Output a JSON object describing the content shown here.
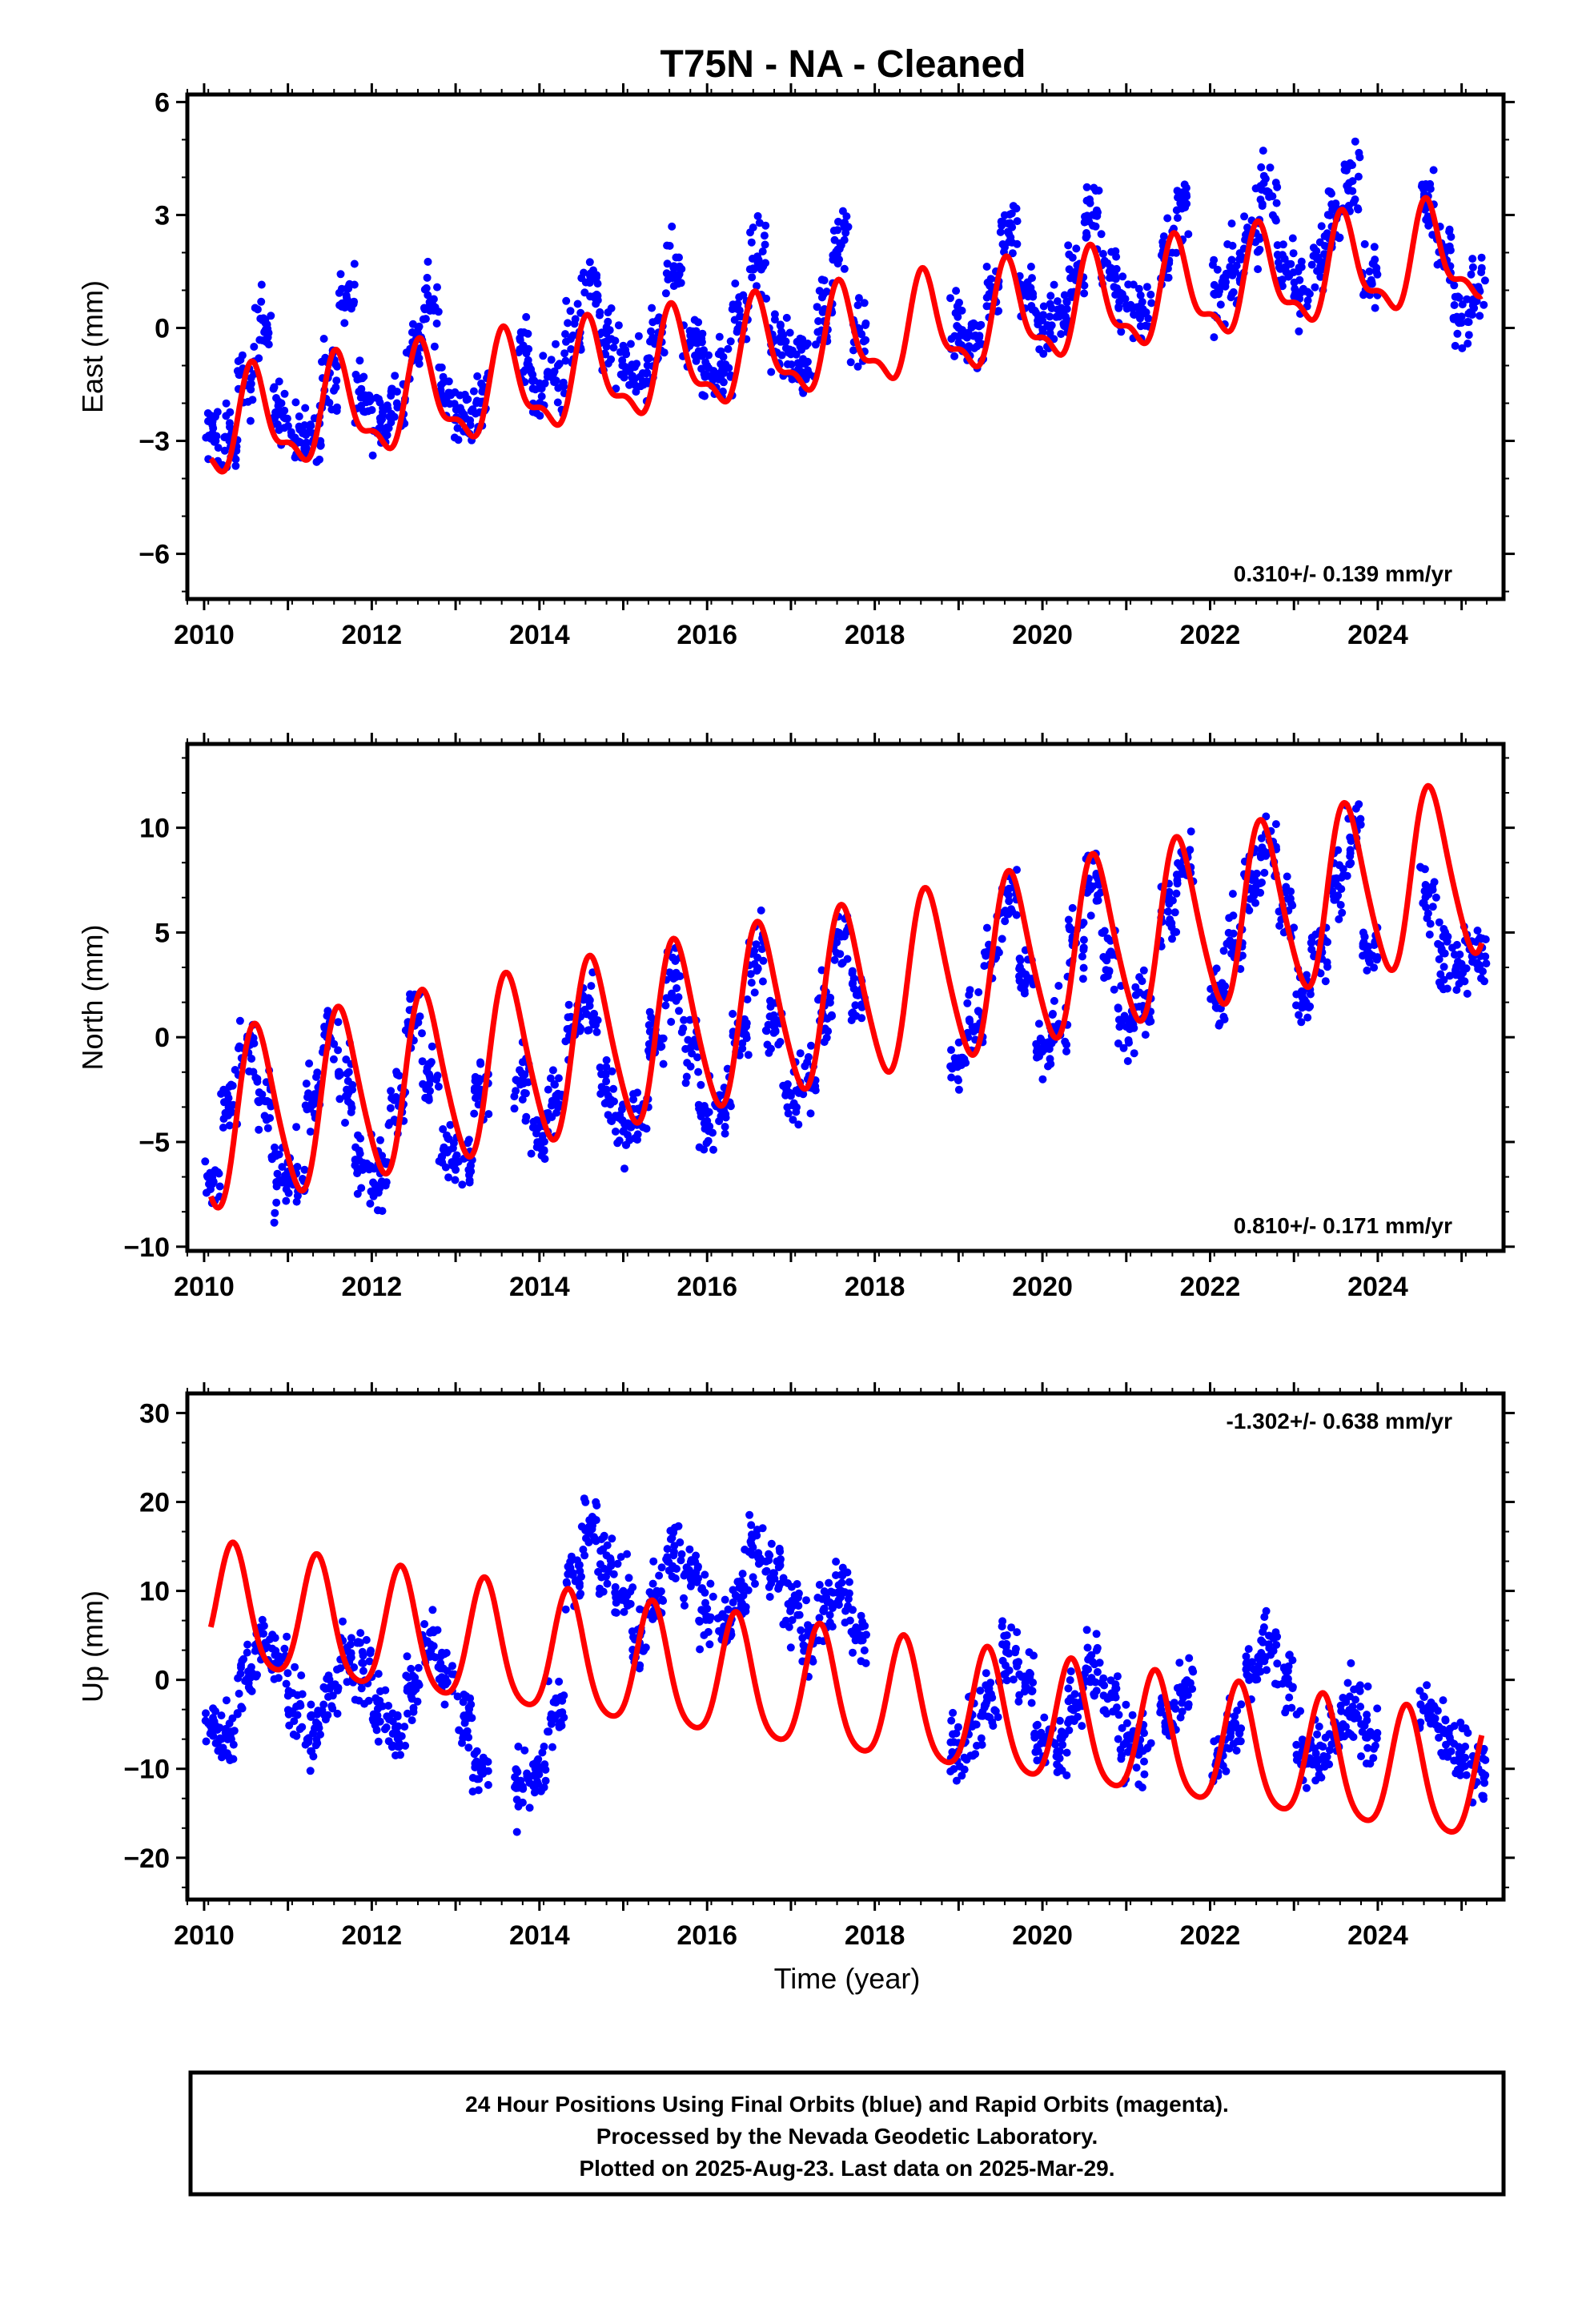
{
  "title": "T75N  - NA - Cleaned",
  "footer": {
    "line1": "24 Hour Positions Using Final Orbits (blue) and Rapid Orbits (magenta).",
    "line2": "Processed by the Nevada Geodetic Laboratory.",
    "line3": "Plotted on 2025-Aug-23. Last data on 2025-Mar-29."
  },
  "xlabel": "Time (year)",
  "colors": {
    "data": "#0000ff",
    "model": "#ff0000",
    "frame": "#000000"
  },
  "chart_data": [
    {
      "type": "scatter",
      "component": "east",
      "ylabel": "East (mm)",
      "xlim": [
        2009.8,
        2025.5
      ],
      "ylim": [
        -7.2,
        6.2
      ],
      "yticks": [
        -6,
        -3,
        0,
        3,
        6
      ],
      "xticks": [
        2010,
        2012,
        2014,
        2016,
        2018,
        2020,
        2022,
        2024
      ],
      "rate": "0.310+/- 0.139 mm/yr",
      "rate_position": "bottom-right",
      "model": {
        "offset": -2.75,
        "rate": 0.31,
        "annual_cos": -1.0,
        "annual_sin": -0.7,
        "semi_cos": 0.4,
        "semi_sin": 0.3,
        "start": 2010.08,
        "end": 2025.24
      },
      "series": [
        {
          "kind": "daily-positions",
          "x": [
            2010.1,
            2010.3,
            2010.5,
            2010.7,
            2010.9,
            2011.1,
            2011.3,
            2011.5,
            2011.7,
            2011.9,
            2012.1,
            2012.3,
            2012.5,
            2012.7,
            2012.9,
            2013.1,
            2013.3,
            2013.8,
            2014.0,
            2014.2,
            2014.4,
            2014.6,
            2014.8,
            2015.0,
            2015.2,
            2015.4,
            2015.6,
            2015.8,
            2016.0,
            2016.2,
            2016.4,
            2016.6,
            2016.8,
            2017.0,
            2017.2,
            2017.4,
            2017.6,
            2017.8,
            2019.0,
            2019.2,
            2019.4,
            2019.6,
            2019.8,
            2020.0,
            2020.2,
            2020.4,
            2020.6,
            2020.8,
            2021.0,
            2021.2,
            2021.5,
            2021.7,
            2022.1,
            2022.3,
            2022.5,
            2022.7,
            2022.9,
            2023.1,
            2023.3,
            2023.5,
            2023.7,
            2023.9,
            2024.6,
            2024.8,
            2025.0,
            2025.2
          ],
          "y": [
            -2.8,
            -3.0,
            -1.5,
            0.2,
            -2.2,
            -3.0,
            -2.8,
            -1.2,
            0.8,
            -1.8,
            -2.4,
            -2.0,
            -0.5,
            0.6,
            -1.8,
            -2.3,
            -2.0,
            -0.5,
            -1.6,
            -1.4,
            -0.2,
            1.2,
            -0.5,
            -1.0,
            -1.3,
            -0.4,
            1.6,
            -0.2,
            -1.0,
            -1.2,
            0.3,
            1.9,
            -0.3,
            -0.7,
            -0.9,
            0.5,
            2.2,
            0.0,
            0.0,
            -0.2,
            1.0,
            2.5,
            1.0,
            0.2,
            0.3,
            1.5,
            3.0,
            1.5,
            0.6,
            0.5,
            2.0,
            3.2,
            0.9,
            1.5,
            2.5,
            3.6,
            1.6,
            1.0,
            1.8,
            3.2,
            3.9,
            1.5,
            3.5,
            2.0,
            0.3,
            1.0
          ]
        }
      ]
    },
    {
      "type": "scatter",
      "component": "north",
      "ylabel": "North (mm)",
      "xlim": [
        2009.8,
        2025.5
      ],
      "ylim": [
        -10.2,
        14.0
      ],
      "yticks": [
        -10,
        -5,
        0,
        5,
        10
      ],
      "xticks": [
        2010,
        2012,
        2014,
        2016,
        2018,
        2020,
        2022,
        2024
      ],
      "rate": "0.810+/- 0.171 mm/yr",
      "rate_position": "bottom-right",
      "model": {
        "offset": -4.2,
        "rate": 0.81,
        "annual_cos": -2.8,
        "annual_sin": -3.0,
        "semi_cos": 0.5,
        "semi_sin": 0.2,
        "start": 2010.08,
        "end": 2025.24
      },
      "series": [
        {
          "kind": "daily-positions",
          "x": [
            2010.1,
            2010.3,
            2010.5,
            2010.7,
            2010.9,
            2011.1,
            2011.3,
            2011.5,
            2011.7,
            2011.9,
            2012.1,
            2012.3,
            2012.5,
            2012.7,
            2012.9,
            2013.1,
            2013.3,
            2013.8,
            2014.0,
            2014.2,
            2014.4,
            2014.6,
            2014.8,
            2015.0,
            2015.2,
            2015.4,
            2015.6,
            2015.8,
            2016.0,
            2016.2,
            2016.4,
            2016.6,
            2016.8,
            2017.0,
            2017.2,
            2017.4,
            2017.6,
            2017.8,
            2019.0,
            2019.2,
            2019.4,
            2019.6,
            2019.8,
            2020.0,
            2020.2,
            2020.4,
            2020.6,
            2020.8,
            2021.0,
            2021.2,
            2021.5,
            2021.7,
            2022.1,
            2022.3,
            2022.5,
            2022.7,
            2022.9,
            2023.1,
            2023.3,
            2023.5,
            2023.7,
            2023.9,
            2024.6,
            2024.8,
            2025.0,
            2025.2
          ],
          "y": [
            -7.0,
            -3.5,
            -0.6,
            -3.0,
            -6.8,
            -6.5,
            -3.0,
            0.0,
            -2.5,
            -6.0,
            -6.5,
            -3.0,
            0.8,
            -2.0,
            -5.5,
            -5.8,
            -2.5,
            -2.0,
            -5.0,
            -3.0,
            0.5,
            1.5,
            -2.5,
            -4.5,
            -3.5,
            0.0,
            2.8,
            -0.5,
            -4.0,
            -3.5,
            0.5,
            3.8,
            0.5,
            -2.8,
            -2.0,
            1.5,
            4.8,
            2.0,
            -1.0,
            0.5,
            4.0,
            6.5,
            3.0,
            -0.5,
            0.5,
            4.5,
            7.2,
            4.0,
            0.5,
            1.5,
            6.0,
            8.0,
            2.0,
            4.5,
            7.5,
            8.8,
            6.0,
            2.0,
            4.5,
            7.5,
            9.5,
            4.0,
            7.0,
            4.0,
            3.5,
            4.0
          ]
        }
      ]
    },
    {
      "type": "scatter",
      "component": "up",
      "ylabel": "Up (mm)",
      "xlim": [
        2009.8,
        2025.5
      ],
      "ylim": [
        -24.7,
        32.2
      ],
      "yticks": [
        -20,
        -10,
        0,
        10,
        20,
        30
      ],
      "xticks": [
        2010,
        2012,
        2014,
        2016,
        2018,
        2020,
        2022,
        2024
      ],
      "rate": "-1.302+/- 0.638 mm/yr",
      "rate_position": "top-right",
      "model": {
        "offset": 8.0,
        "rate": -1.302,
        "annual_cos": -4.0,
        "annual_sin": 5.5,
        "semi_cos": -0.5,
        "semi_sin": -1.0,
        "start": 2010.08,
        "end": 2025.24
      },
      "series": [
        {
          "kind": "daily-positions",
          "x": [
            2010.1,
            2010.3,
            2010.5,
            2010.7,
            2010.9,
            2011.1,
            2011.3,
            2011.5,
            2011.7,
            2011.9,
            2012.1,
            2012.3,
            2012.5,
            2012.7,
            2012.9,
            2013.1,
            2013.3,
            2013.8,
            2014.0,
            2014.2,
            2014.4,
            2014.6,
            2014.8,
            2015.0,
            2015.2,
            2015.4,
            2015.6,
            2015.8,
            2016.0,
            2016.2,
            2016.4,
            2016.6,
            2016.8,
            2017.0,
            2017.2,
            2017.4,
            2017.6,
            2017.8,
            2019.0,
            2019.2,
            2019.4,
            2019.6,
            2019.8,
            2020.0,
            2020.2,
            2020.4,
            2020.6,
            2020.8,
            2021.0,
            2021.2,
            2021.5,
            2021.7,
            2022.1,
            2022.3,
            2022.5,
            2022.7,
            2022.9,
            2023.1,
            2023.3,
            2023.5,
            2023.7,
            2023.9,
            2024.6,
            2024.8,
            2025.0,
            2025.2
          ],
          "y": [
            -5.0,
            -6.0,
            0.0,
            3.5,
            2.0,
            -3.0,
            -6.0,
            -1.0,
            2.0,
            1.0,
            -3.0,
            -6.0,
            -1.0,
            4.0,
            1.0,
            -4.0,
            -10.0,
            -12.0,
            -10.0,
            -4.0,
            12.0,
            17.0,
            14.0,
            10.0,
            5.0,
            10.0,
            14.0,
            12.0,
            8.0,
            6.0,
            9.0,
            14.0,
            12.0,
            8.0,
            5.0,
            8.0,
            10.0,
            5.0,
            -8.0,
            -5.0,
            -2.0,
            3.0,
            0.0,
            -7.0,
            -8.0,
            -3.0,
            2.0,
            -2.0,
            -7.0,
            -8.0,
            -4.0,
            -1.0,
            -9.0,
            -5.0,
            2.0,
            4.0,
            0.0,
            -8.0,
            -9.0,
            -5.0,
            -3.0,
            -6.0,
            -4.0,
            -6.0,
            -8.0,
            -10.0
          ]
        }
      ]
    }
  ]
}
